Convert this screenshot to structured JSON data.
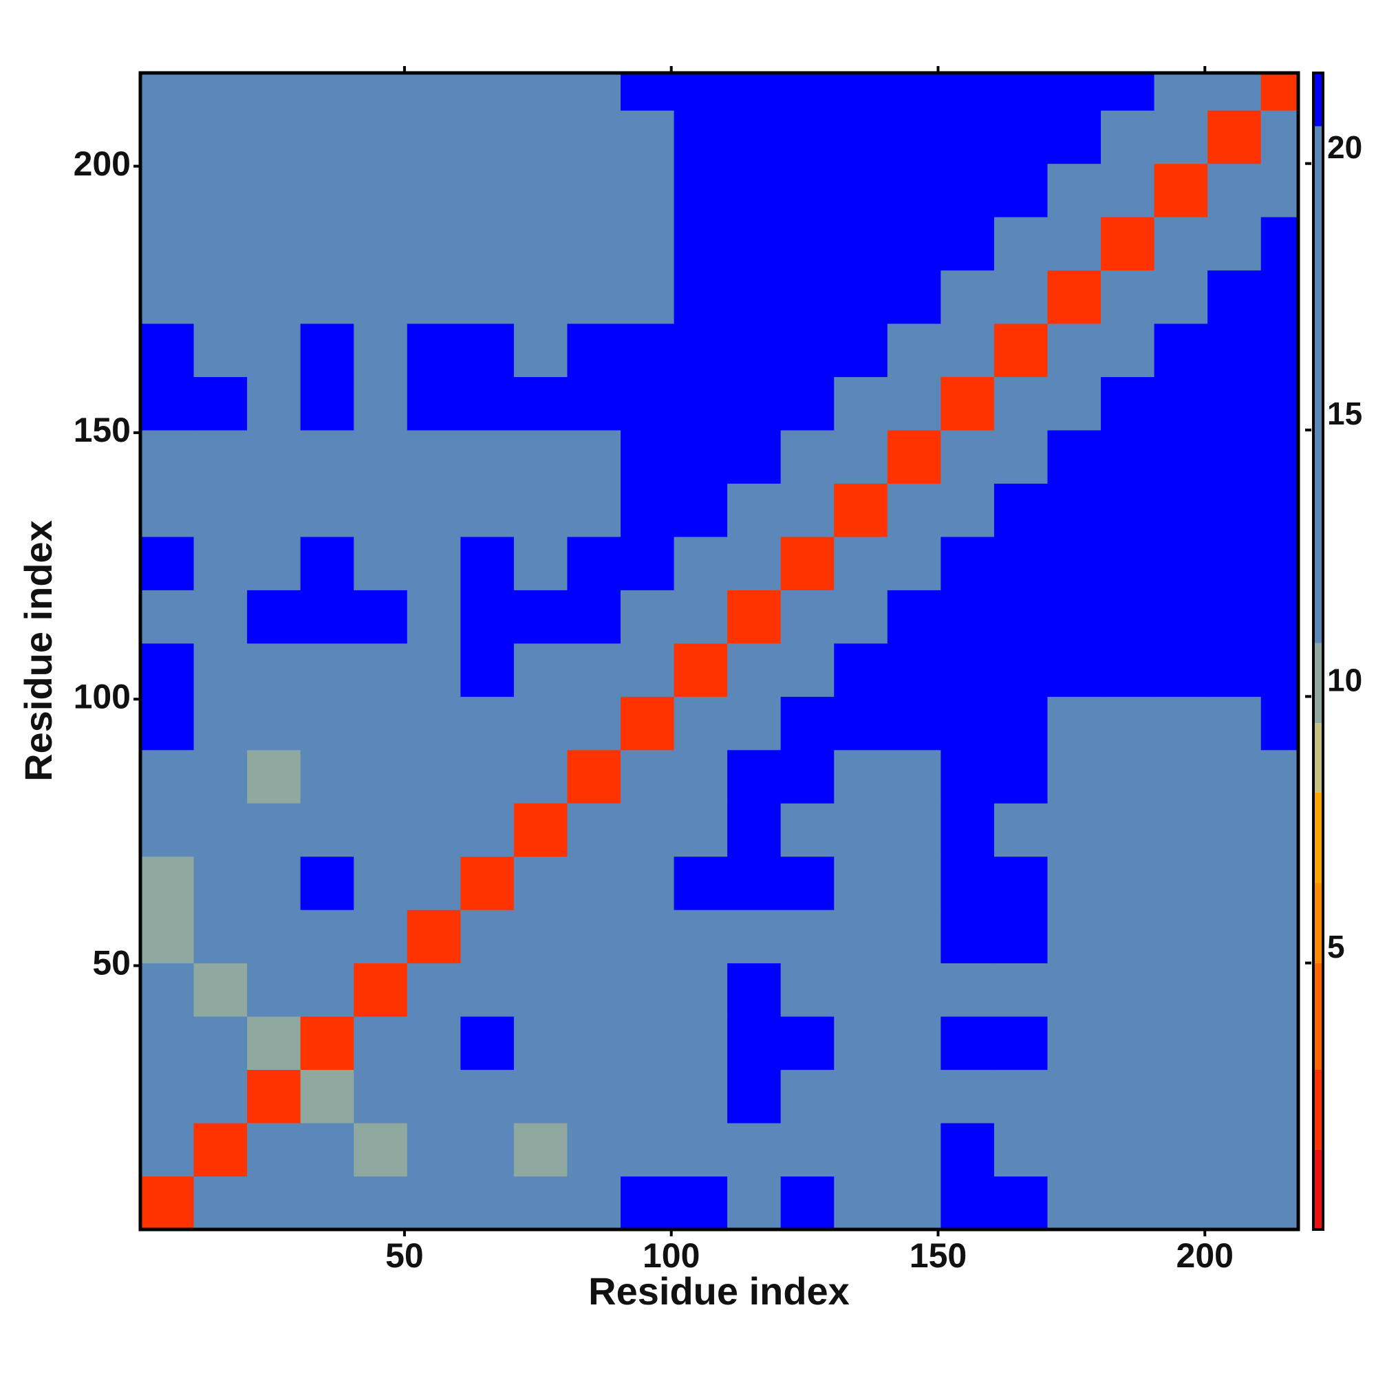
{
  "chart_data": {
    "type": "heatmap",
    "x_label": "Residue index",
    "y_label": "Residue index",
    "xlim": [
      0.5,
      217.5
    ],
    "ylim": [
      0.5,
      217.5
    ],
    "xticks": [
      50,
      100,
      150,
      200
    ],
    "yticks": [
      50,
      100,
      150,
      200
    ],
    "xbins": [
      0.5,
      10.5,
      20.5,
      30.5,
      40.5,
      50.5,
      60.5,
      70.5,
      80.5,
      90.5,
      100.5,
      110.5,
      120.5,
      130.5,
      140.5,
      150.5,
      160.5,
      170.5,
      180.5,
      190.5,
      200.5,
      210.5,
      217.5
    ],
    "ybins": [
      0.5,
      10.5,
      20.5,
      30.5,
      40.5,
      50.5,
      60.5,
      70.5,
      80.5,
      90.5,
      100.5,
      110.5,
      120.5,
      130.5,
      140.5,
      150.5,
      160.5,
      170.5,
      180.5,
      190.5,
      200.5,
      210.5,
      217.5
    ],
    "z": [
      [
        2,
        11,
        17,
        14,
        11,
        12,
        13,
        16,
        18,
        21,
        21,
        19,
        21,
        20,
        20,
        21,
        21,
        20,
        19,
        17,
        17,
        19
      ],
      [
        11,
        2,
        11,
        13,
        10,
        11,
        11,
        10,
        14,
        20,
        20,
        20,
        20,
        19,
        19,
        21,
        20,
        19,
        18,
        16,
        16,
        18
      ],
      [
        20,
        13,
        2,
        10,
        11,
        14,
        16,
        12,
        11,
        18,
        18,
        21,
        20,
        19,
        19,
        20,
        20,
        19,
        18,
        17,
        17,
        19
      ],
      [
        17,
        14,
        10,
        2,
        11,
        17,
        21,
        17,
        11,
        16,
        17,
        21,
        21,
        20,
        20,
        21,
        21,
        20,
        19,
        17,
        16,
        18
      ],
      [
        12,
        10,
        12,
        11,
        2,
        11,
        18,
        13,
        11,
        15,
        18,
        21,
        19,
        18,
        18,
        20,
        20,
        19,
        18,
        16,
        16,
        19
      ],
      [
        10,
        11,
        14,
        17,
        12,
        2,
        11,
        12,
        13,
        16,
        19,
        19,
        19,
        19,
        19,
        21,
        21,
        20,
        19,
        19,
        19,
        19
      ],
      [
        10,
        13,
        16,
        21,
        18,
        11,
        2,
        11,
        17,
        20,
        21,
        21,
        21,
        20,
        19,
        21,
        21,
        19,
        19,
        17,
        17,
        20
      ],
      [
        12,
        11,
        14,
        19,
        12,
        11,
        11,
        2,
        11,
        18,
        20,
        21,
        20,
        19,
        19,
        21,
        20,
        19,
        16,
        17,
        18,
        20
      ],
      [
        15,
        12,
        10,
        12,
        11,
        15,
        19,
        11,
        2,
        11,
        18,
        21,
        21,
        20,
        20,
        21,
        21,
        19,
        18,
        19,
        19,
        20
      ],
      [
        21,
        15,
        13,
        13,
        15,
        17,
        20,
        20,
        11,
        2,
        11,
        18,
        21,
        21,
        21,
        21,
        21,
        20,
        19,
        20,
        20,
        21
      ],
      [
        21,
        20,
        18,
        17,
        18,
        19,
        21,
        20,
        18,
        11,
        2,
        11,
        18,
        21,
        21,
        21,
        21,
        21,
        21,
        21,
        21,
        21
      ],
      [
        19,
        20,
        21,
        21,
        21,
        19,
        21,
        21,
        21,
        18,
        11,
        2,
        11,
        18,
        21,
        21,
        21,
        21,
        21,
        21,
        21,
        21
      ],
      [
        21,
        20,
        20,
        21,
        19,
        19,
        21,
        20,
        21,
        21,
        18,
        11,
        2,
        11,
        18,
        21,
        21,
        21,
        21,
        21,
        21,
        21
      ],
      [
        20,
        19,
        19,
        20,
        18,
        19,
        20,
        19,
        20,
        21,
        21,
        18,
        11,
        2,
        11,
        18,
        21,
        21,
        21,
        21,
        21,
        21
      ],
      [
        20,
        19,
        19,
        20,
        18,
        19,
        19,
        19,
        20,
        21,
        21,
        21,
        18,
        11,
        2,
        11,
        18,
        21,
        21,
        21,
        21,
        21
      ],
      [
        21,
        21,
        20,
        21,
        20,
        21,
        21,
        21,
        21,
        21,
        21,
        21,
        21,
        18,
        11,
        2,
        11,
        18,
        21,
        21,
        21,
        21
      ],
      [
        21,
        20,
        20,
        21,
        20,
        21,
        21,
        20,
        21,
        21,
        21,
        21,
        21,
        21,
        18,
        11,
        2,
        11,
        18,
        21,
        21,
        21
      ],
      [
        20,
        19,
        19,
        20,
        19,
        20,
        19,
        19,
        19,
        20,
        21,
        21,
        21,
        21,
        21,
        18,
        11,
        2,
        11,
        18,
        21,
        21
      ],
      [
        19,
        18,
        18,
        19,
        18,
        19,
        19,
        16,
        18,
        19,
        21,
        21,
        21,
        21,
        21,
        21,
        18,
        11,
        2,
        11,
        18,
        21
      ],
      [
        17,
        16,
        17,
        17,
        16,
        19,
        17,
        17,
        19,
        20,
        21,
        21,
        21,
        21,
        21,
        21,
        21,
        18,
        11,
        2,
        11,
        18
      ],
      [
        17,
        16,
        17,
        16,
        16,
        19,
        17,
        18,
        19,
        20,
        21,
        21,
        21,
        21,
        21,
        21,
        21,
        21,
        18,
        11,
        2,
        11
      ],
      [
        19,
        18,
        19,
        18,
        19,
        19,
        20,
        20,
        20,
        21,
        21,
        21,
        21,
        21,
        21,
        21,
        21,
        21,
        21,
        18,
        11,
        2
      ]
    ],
    "colorscale": {
      "breaks": [
        0,
        1.5,
        3,
        5,
        6.5,
        8.2,
        9.5,
        11,
        20.7,
        21.7
      ],
      "colors": [
        "#ee1111",
        "#ff3300",
        "#ff6600",
        "#ff8c00",
        "#ffa500",
        "#c8c080",
        "#8fa8a0",
        "#5b88b8",
        "#0000ff"
      ]
    },
    "zticks": [
      5,
      10,
      15,
      20
    ]
  }
}
